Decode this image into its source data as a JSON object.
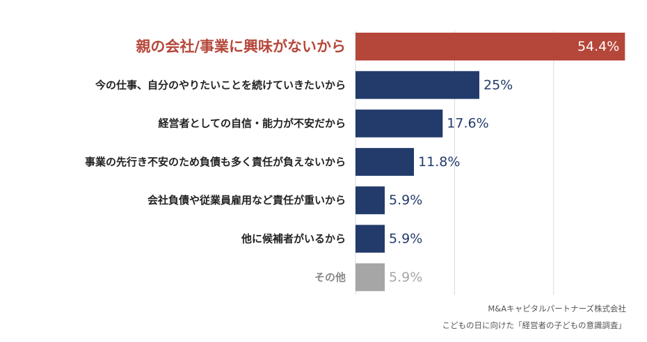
{
  "chart_data": {
    "type": "bar",
    "orientation": "horizontal",
    "categories": [
      "親の会社/事業に興味がないから",
      "今の仕事、自分のやりたいことを続けていきたいから",
      "経営者としての自信・能力が不安だから",
      "事業の先行き不安のため負債も多く責任が負えないから",
      "会社負債や従業員雇用など責任が重いから",
      "他に候補者がいるから",
      "その他"
    ],
    "values": [
      54.4,
      25,
      17.6,
      11.8,
      5.9,
      5.9,
      5.9
    ],
    "value_labels": [
      "54.4%",
      "25%",
      "17.6%",
      "11.8%",
      "5.9%",
      "5.9%",
      "5.9%"
    ],
    "xlim": [
      0,
      60
    ],
    "grid": true,
    "bar_colors": [
      "#b5473a",
      "#233b6b",
      "#233b6b",
      "#233b6b",
      "#233b6b",
      "#233b6b",
      "#a6a6a6"
    ],
    "label_colors": [
      "#b5473a",
      "#222222",
      "#222222",
      "#222222",
      "#222222",
      "#222222",
      "#888888"
    ],
    "value_label_colors": [
      "#ffffff",
      "#233b6b",
      "#233b6b",
      "#233b6b",
      "#233b6b",
      "#233b6b",
      "#a6a6a6"
    ]
  },
  "source": {
    "company": "M&Aキャピタルパートナーズ株式会社",
    "survey": "こどもの日に向けた「経営者の子どもの意識調査」"
  }
}
